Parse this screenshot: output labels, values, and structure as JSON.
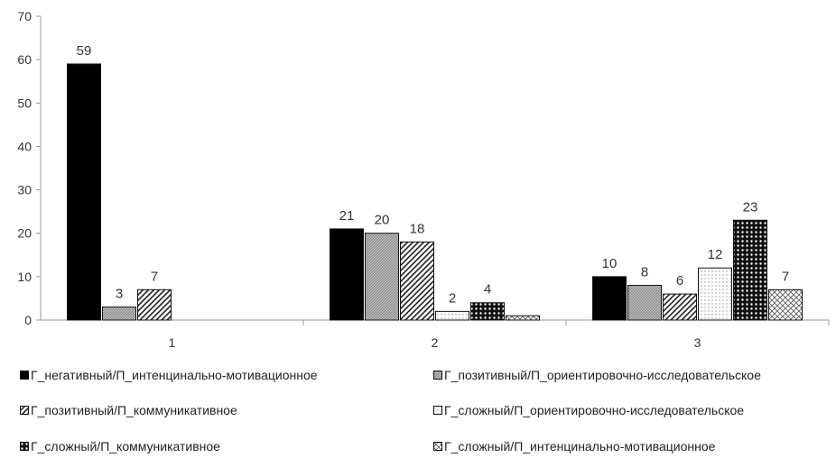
{
  "chart_data": {
    "type": "bar",
    "categories": [
      "1",
      "2",
      "3"
    ],
    "ylim": [
      0,
      70
    ],
    "yticks": [
      0,
      10,
      20,
      30,
      40,
      50,
      60,
      70
    ],
    "grid": false,
    "legend_position": "bottom",
    "series": [
      {
        "name": "Г_негативный/П_интенцинально-мотивационное",
        "pattern": "solid",
        "values": [
          59,
          21,
          10
        ],
        "labels": [
          "59",
          "21",
          "10"
        ]
      },
      {
        "name": "Г_позитивный/П_ориентировочно-исследовательское",
        "pattern": "hatch-fine",
        "values": [
          3,
          20,
          8
        ],
        "labels": [
          "3",
          "20",
          "8"
        ]
      },
      {
        "name": "Г_позитивный/П_коммуникативное",
        "pattern": "diagonal",
        "values": [
          7,
          18,
          6
        ],
        "labels": [
          "7",
          "18",
          "6"
        ]
      },
      {
        "name": "Г_сложный/П_ориентировочно-исследовательское",
        "pattern": "dots-light",
        "values": [
          null,
          2,
          12
        ],
        "labels": [
          "",
          "2",
          "12"
        ]
      },
      {
        "name": "Г_сложный/П_коммуникативное",
        "pattern": "grid-dark",
        "values": [
          null,
          4,
          23
        ],
        "labels": [
          "",
          "4",
          "23"
        ]
      },
      {
        "name": "Г_сложный/П_интенцинально-мотивационное",
        "pattern": "crosshatch",
        "values": [
          null,
          1,
          7
        ],
        "labels": [
          "",
          "",
          "7"
        ]
      }
    ]
  }
}
